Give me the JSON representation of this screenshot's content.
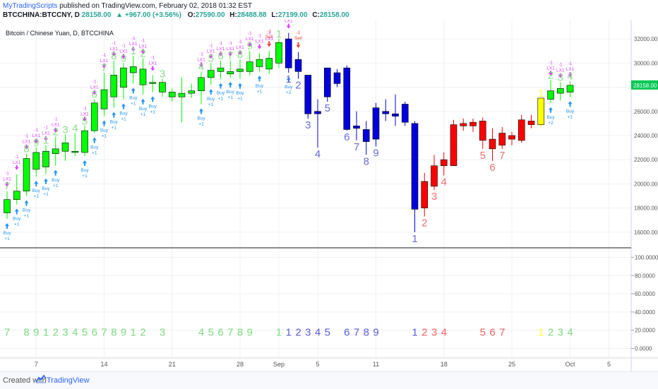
{
  "header": {
    "brand": "MyTradingScripts",
    "published": "published on TradingView.com, February 02, 2018 01:32 EST",
    "symbol": "BTCCHINA:BTCCNY, D",
    "last": "28158.00",
    "change": "▲ +967.00 (+3.56%)",
    "o_label": "O:",
    "o_value": "27590.00",
    "h_label": "H:",
    "h_value": "28488.88",
    "l_label": "L:",
    "l_value": "27199.00",
    "c_label": "C:",
    "c_value": "28158.00"
  },
  "chart_title": "Bitcoin / Chinese Yuan, D, BTCCHINA",
  "footer": {
    "created": "Created with",
    "brand": "TradingView"
  },
  "colors": {
    "up": "#00ff00",
    "down": "#0000dd",
    "red": "#ff0000",
    "yellow": "#ffff00",
    "seq_green": "#7ddb7d",
    "seq_blue": "#5b5bd6",
    "seq_red": "#f06060",
    "seq_yellow": "#ffff33",
    "buy": "#2196f3",
    "sell": "#f44336",
    "lx": "#e040fb"
  },
  "chart_data": {
    "type": "candlestick",
    "title": "Bitcoin / Chinese Yuan, D, BTCCHINA",
    "price_axis": {
      "ticks": [
        16000,
        18000,
        20000,
        22000,
        24000,
        26000,
        28000,
        30000,
        32000
      ],
      "last_label": "28158.00",
      "ylim": [
        15000,
        33000
      ]
    },
    "indicator_axis": {
      "ticks": [
        "100.0000",
        "80.0000",
        "60.0000",
        "40.0000",
        "20.0000",
        "0.0000"
      ],
      "ylim": [
        -5,
        105
      ]
    },
    "x_ticks": [
      {
        "label": "7",
        "day": 3
      },
      {
        "label": "14",
        "day": 10
      },
      {
        "label": "21",
        "day": 17
      },
      {
        "label": "28",
        "day": 24
      },
      {
        "label": "Sep",
        "day": 28
      },
      {
        "label": "5",
        "day": 32
      },
      {
        "label": "11",
        "day": 38
      },
      {
        "label": "18",
        "day": 45
      },
      {
        "label": "25",
        "day": 52
      },
      {
        "label": "Oct",
        "day": 58
      },
      {
        "label": "5",
        "day": 62
      }
    ],
    "candles": [
      {
        "d": 0,
        "o": 17600,
        "h": 19400,
        "l": 17100,
        "c": 18700,
        "col": "up",
        "cnt": "7",
        "cc": "seq_green",
        "buy": true,
        "lx": true
      },
      {
        "d": 1,
        "o": 18700,
        "h": 20800,
        "l": 18300,
        "c": 19400,
        "col": "up",
        "cnt": "",
        "cc": "",
        "buy": true,
        "lx": true
      },
      {
        "d": 2,
        "o": 19400,
        "h": 22500,
        "l": 19000,
        "c": 22100,
        "col": "up",
        "cnt": "8",
        "cc": "seq_green",
        "buy": true,
        "lx": true
      },
      {
        "d": 3,
        "o": 21200,
        "h": 23000,
        "l": 20600,
        "c": 22600,
        "col": "up",
        "cnt": "9",
        "cc": "seq_green",
        "buy": true,
        "lx": true
      },
      {
        "d": 4,
        "o": 21400,
        "h": 23200,
        "l": 20800,
        "c": 22700,
        "col": "up",
        "cnt": "1",
        "cc": "seq_green",
        "buy": true,
        "lx": true
      },
      {
        "d": 5,
        "o": 22500,
        "h": 23900,
        "l": 21500,
        "c": 22900,
        "col": "up",
        "cnt": "2",
        "cc": "seq_green",
        "buy": true,
        "lx": true
      },
      {
        "d": 6,
        "o": 22700,
        "h": 24100,
        "l": 21900,
        "c": 23400,
        "col": "up",
        "cnt": "3",
        "cc": "seq_green",
        "buy": false,
        "lx": false
      },
      {
        "d": 7,
        "o": 22600,
        "h": 24200,
        "l": 22300,
        "c": 22700,
        "col": "up",
        "cnt": "4",
        "cc": "seq_green",
        "buy": false,
        "lx": false
      },
      {
        "d": 8,
        "o": 22600,
        "h": 24800,
        "l": 22300,
        "c": 24400,
        "col": "up",
        "cnt": "5",
        "cc": "seq_green",
        "buy": true,
        "lx": true
      },
      {
        "d": 9,
        "o": 24400,
        "h": 27000,
        "l": 24200,
        "c": 26700,
        "col": "up",
        "cnt": "6",
        "cc": "seq_green",
        "buy": true,
        "lx": true
      },
      {
        "d": 10,
        "o": 26200,
        "h": 29200,
        "l": 25600,
        "c": 27800,
        "col": "up",
        "cnt": "7",
        "cc": "seq_green",
        "buy": true,
        "lx": true
      },
      {
        "d": 11,
        "o": 27200,
        "h": 30200,
        "l": 26300,
        "c": 29000,
        "col": "up",
        "cnt": "8",
        "cc": "seq_green",
        "buy": true,
        "lx": true
      },
      {
        "d": 12,
        "o": 28000,
        "h": 30000,
        "l": 27000,
        "c": 29600,
        "col": "up",
        "cnt": "9",
        "cc": "seq_green",
        "buy": true,
        "lx": true
      },
      {
        "d": 13,
        "o": 29200,
        "h": 30600,
        "l": 28300,
        "c": 29700,
        "col": "up",
        "cnt": "1",
        "cc": "seq_green",
        "buy": true,
        "lx": true
      },
      {
        "d": 14,
        "o": 28200,
        "h": 30400,
        "l": 27400,
        "c": 29500,
        "col": "up",
        "cnt": "2",
        "cc": "seq_green",
        "buy": true,
        "lx": true
      },
      {
        "d": 15,
        "o": 28300,
        "h": 29000,
        "l": 27600,
        "c": 28400,
        "col": "up",
        "cnt": "",
        "cc": "",
        "buy": true,
        "lx": true
      },
      {
        "d": 16,
        "o": 28400,
        "h": 28700,
        "l": 27200,
        "c": 27600,
        "col": "up",
        "cnt": "3",
        "cc": "seq_green",
        "buy": false,
        "lx": false
      },
      {
        "d": 17,
        "o": 27600,
        "h": 27900,
        "l": 26800,
        "c": 27200,
        "col": "up",
        "cnt": "",
        "cc": "",
        "buy": false,
        "lx": false
      },
      {
        "d": 18,
        "o": 27200,
        "h": 28800,
        "l": 25100,
        "c": 27500,
        "col": "up",
        "cnt": "",
        "cc": "",
        "buy": false,
        "lx": false
      },
      {
        "d": 19,
        "o": 27500,
        "h": 28300,
        "l": 27100,
        "c": 27700,
        "col": "up",
        "cnt": "",
        "cc": "",
        "buy": false,
        "lx": false
      },
      {
        "d": 20,
        "o": 27700,
        "h": 29300,
        "l": 26600,
        "c": 28800,
        "col": "up",
        "cnt": "4",
        "cc": "seq_green",
        "buy": true,
        "lx": true
      },
      {
        "d": 21,
        "o": 28800,
        "h": 30000,
        "l": 28200,
        "c": 29400,
        "col": "up",
        "cnt": "5",
        "cc": "seq_green",
        "buy": true,
        "lx": true
      },
      {
        "d": 22,
        "o": 29300,
        "h": 30200,
        "l": 28700,
        "c": 29600,
        "col": "up",
        "cnt": "6",
        "cc": "seq_green",
        "buy": true,
        "lx": true
      },
      {
        "d": 23,
        "o": 29300,
        "h": 30200,
        "l": 28800,
        "c": 29100,
        "col": "up",
        "cnt": "7",
        "cc": "seq_green",
        "buy": true,
        "lx": true
      },
      {
        "d": 24,
        "o": 29300,
        "h": 30300,
        "l": 28700,
        "c": 29500,
        "col": "up",
        "cnt": "8",
        "cc": "seq_green",
        "buy": true,
        "lx": true
      },
      {
        "d": 25,
        "o": 29300,
        "h": 31000,
        "l": 29000,
        "c": 30100,
        "col": "up",
        "cnt": "9",
        "cc": "seq_green",
        "buy": false,
        "lx": true
      },
      {
        "d": 26,
        "o": 29700,
        "h": 30800,
        "l": 29300,
        "c": 30300,
        "col": "up",
        "cnt": "",
        "cc": "",
        "buy": true,
        "lx": true
      },
      {
        "d": 27,
        "o": 29500,
        "h": 31000,
        "l": 29100,
        "c": 30400,
        "col": "up",
        "cnt": "",
        "cc": "",
        "buy": false,
        "lx": true,
        "sell": true
      },
      {
        "d": 28,
        "o": 30000,
        "h": 32000,
        "l": 29600,
        "c": 31700,
        "col": "up",
        "cnt": "1",
        "cc": "seq_green",
        "buy": false,
        "lx": false
      },
      {
        "d": 29,
        "o": 32000,
        "h": 32500,
        "l": 29200,
        "c": 29600,
        "col": "down",
        "cnt": "1",
        "cc": "seq_blue",
        "buy": true,
        "lx": true
      },
      {
        "d": 30,
        "o": 30300,
        "h": 30900,
        "l": 28700,
        "c": 29300,
        "col": "down",
        "cnt": "2",
        "cc": "seq_blue",
        "buy": false,
        "lx": false,
        "sell": true
      },
      {
        "d": 31,
        "o": 29000,
        "h": 29000,
        "l": 25400,
        "c": 25800,
        "col": "down",
        "cnt": "3",
        "cc": "seq_blue",
        "buy": false,
        "lx": false
      },
      {
        "d": 32,
        "o": 25800,
        "h": 27000,
        "l": 23000,
        "c": 26000,
        "col": "down",
        "cnt": "4",
        "cc": "seq_blue",
        "buy": false,
        "lx": false
      },
      {
        "d": 33,
        "o": 29600,
        "h": 29600,
        "l": 26800,
        "c": 27200,
        "col": "down",
        "cnt": "5",
        "cc": "seq_blue",
        "buy": false,
        "lx": false
      },
      {
        "d": 34,
        "o": 29200,
        "h": 29500,
        "l": 28000,
        "c": 28300,
        "col": "down",
        "cnt": "",
        "cc": "",
        "buy": false,
        "lx": false
      },
      {
        "d": 35,
        "o": 29600,
        "h": 29800,
        "l": 24400,
        "c": 24500,
        "col": "down",
        "cnt": "6",
        "cc": "seq_blue",
        "buy": false,
        "lx": false
      },
      {
        "d": 36,
        "o": 24800,
        "h": 26000,
        "l": 23600,
        "c": 24600,
        "col": "down",
        "cnt": "7",
        "cc": "seq_blue",
        "buy": false,
        "lx": false
      },
      {
        "d": 37,
        "o": 24500,
        "h": 25200,
        "l": 22400,
        "c": 23500,
        "col": "down",
        "cnt": "8",
        "cc": "seq_blue",
        "buy": false,
        "lx": false
      },
      {
        "d": 38,
        "o": 26300,
        "h": 26700,
        "l": 23100,
        "c": 23700,
        "col": "down",
        "cnt": "9",
        "cc": "seq_blue",
        "buy": false,
        "lx": false
      },
      {
        "d": 39,
        "o": 26000,
        "h": 27000,
        "l": 25200,
        "c": 25800,
        "col": "down",
        "cnt": "",
        "cc": "",
        "buy": false,
        "lx": false
      },
      {
        "d": 40,
        "o": 25800,
        "h": 27400,
        "l": 24800,
        "c": 25600,
        "col": "down",
        "cnt": "",
        "cc": "",
        "buy": false,
        "lx": false
      },
      {
        "d": 41,
        "o": 26600,
        "h": 26800,
        "l": 24800,
        "c": 25100,
        "col": "down",
        "cnt": "",
        "cc": "",
        "buy": false,
        "lx": false
      },
      {
        "d": 42,
        "o": 25000,
        "h": 25200,
        "l": 16000,
        "c": 17900,
        "col": "down",
        "cnt": "1",
        "cc": "seq_blue",
        "buy": false,
        "lx": false
      },
      {
        "d": 43,
        "o": 18000,
        "h": 20900,
        "l": 17300,
        "c": 20200,
        "col": "red",
        "cnt": "2",
        "cc": "seq_red",
        "buy": false,
        "lx": false
      },
      {
        "d": 44,
        "o": 19800,
        "h": 22400,
        "l": 19500,
        "c": 21500,
        "col": "red",
        "cnt": "3",
        "cc": "seq_red",
        "buy": false,
        "lx": false
      },
      {
        "d": 45,
        "o": 21500,
        "h": 22600,
        "l": 20700,
        "c": 22000,
        "col": "red",
        "cnt": "4",
        "cc": "seq_red",
        "buy": false,
        "lx": false
      },
      {
        "d": 46,
        "o": 21500,
        "h": 25300,
        "l": 21500,
        "c": 24900,
        "col": "red",
        "cnt": "",
        "cc": "",
        "buy": false,
        "lx": false
      },
      {
        "d": 47,
        "o": 24800,
        "h": 25400,
        "l": 24400,
        "c": 25000,
        "col": "red",
        "cnt": "",
        "cc": "",
        "buy": false,
        "lx": false
      },
      {
        "d": 48,
        "o": 24800,
        "h": 25400,
        "l": 24300,
        "c": 25100,
        "col": "red",
        "cnt": "",
        "cc": "",
        "buy": false,
        "lx": false
      },
      {
        "d": 49,
        "o": 25200,
        "h": 25500,
        "l": 22900,
        "c": 23600,
        "col": "red",
        "cnt": "5",
        "cc": "seq_red",
        "buy": false,
        "lx": false
      },
      {
        "d": 50,
        "o": 23700,
        "h": 24600,
        "l": 21900,
        "c": 22900,
        "col": "red",
        "cnt": "6",
        "cc": "seq_red",
        "buy": false,
        "lx": false
      },
      {
        "d": 51,
        "o": 23200,
        "h": 24700,
        "l": 22900,
        "c": 24200,
        "col": "red",
        "cnt": "7",
        "cc": "seq_red",
        "buy": false,
        "lx": false
      },
      {
        "d": 52,
        "o": 23700,
        "h": 24300,
        "l": 23200,
        "c": 24000,
        "col": "red",
        "cnt": "",
        "cc": "",
        "buy": false,
        "lx": false
      },
      {
        "d": 53,
        "o": 23600,
        "h": 25700,
        "l": 23400,
        "c": 25300,
        "col": "red",
        "cnt": "",
        "cc": "",
        "buy": false,
        "lx": false
      },
      {
        "d": 54,
        "o": 24900,
        "h": 25700,
        "l": 24600,
        "c": 25200,
        "col": "red",
        "cnt": "",
        "cc": "",
        "buy": false,
        "lx": false
      },
      {
        "d": 55,
        "o": 24900,
        "h": 27100,
        "l": 24700,
        "c": 27100,
        "col": "yellow",
        "cnt": "1",
        "cc": "seq_yellow",
        "buy": false,
        "lx": false
      },
      {
        "d": 56,
        "o": 27000,
        "h": 28600,
        "l": 26700,
        "c": 27700,
        "col": "up",
        "cnt": "2",
        "cc": "seq_green",
        "buy": true,
        "lx": true
      },
      {
        "d": 57,
        "o": 27500,
        "h": 28400,
        "l": 26900,
        "c": 27900,
        "col": "up",
        "cnt": "3",
        "cc": "seq_green",
        "buy": false,
        "lx": true
      },
      {
        "d": 58,
        "o": 27590,
        "h": 28488,
        "l": 27199,
        "c": 28158,
        "col": "up",
        "cnt": "4",
        "cc": "seq_green",
        "buy": true,
        "lx": true
      }
    ],
    "signal_text": {
      "buy": "Buy",
      "buy_qty": "+1",
      "buy_qty2": "+2",
      "sell": "Sell",
      "lx": "LX1",
      "lx_qty": "-1"
    }
  }
}
